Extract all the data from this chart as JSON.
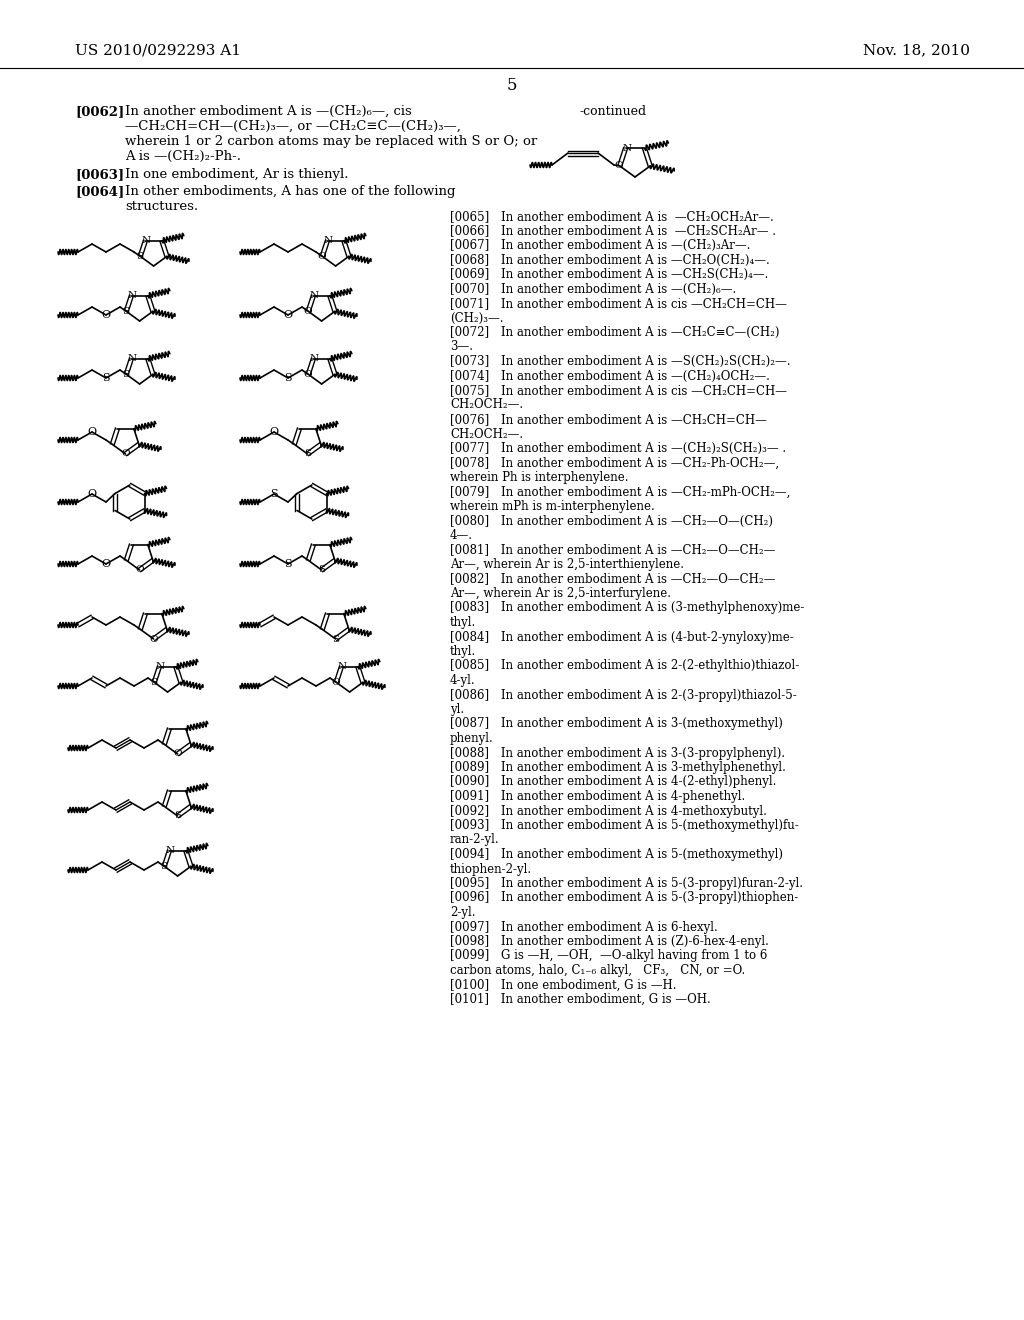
{
  "page_header_left": "US 2010/0292293 A1",
  "page_header_right": "Nov. 18, 2010",
  "page_number": "5",
  "bg_color": "#ffffff",
  "left_text": "[0062] In another embodiment A is —(CH₂)₆—, cis\n—CH₂CH=CH—(CH₂)₃—, or —CH₂C≡C—(CH₂)₃—,\nwherein 1 or 2 carbon atoms may be replaced with S or O; or\nA is —(CH₂)₂-Ph-.\n[0063] In one embodiment, Ar is thienyl.\n[0064] In other embodiments, A has one of the following\nstructures.",
  "continued_label": "-continued",
  "right_text_blocks": [
    {
      "tag": "[0065]",
      "indent": "   ",
      "text": "In another embodiment A is  —CH₂OCH₂Ar—."
    },
    {
      "tag": "[0066]",
      "indent": "   ",
      "text": "In another embodiment A is  —CH₂SCH₂Ar— ."
    },
    {
      "tag": "[0067]",
      "indent": "   ",
      "text": "In another embodiment A is —(CH₂)₃Ar—."
    },
    {
      "tag": "[0068]",
      "indent": "   ",
      "text": "In another embodiment A is —CH₂O(CH₂)₄—."
    },
    {
      "tag": "[0069]",
      "indent": "   ",
      "text": "In another embodiment A is —CH₂S(CH₂)₄—."
    },
    {
      "tag": "[0070]",
      "indent": "   ",
      "text": "In another embodiment A is —(CH₂)₆—."
    },
    {
      "tag": "[0071]",
      "indent": "   ",
      "text": "In another embodiment A is cis —CH₂CH=CH—\n(CH₂)₃—."
    },
    {
      "tag": "[0072]",
      "indent": "   ",
      "text": "In another embodiment A is —CH₂C≡C—(CH₂)\n3—."
    },
    {
      "tag": "[0073]",
      "indent": "   ",
      "text": "In another embodiment A is —S(CH₂)₂S(CH₂)₂—."
    },
    {
      "tag": "[0074]",
      "indent": "   ",
      "text": "In another embodiment A is —(CH₂)₄OCH₂—."
    },
    {
      "tag": "[0075]",
      "indent": "   ",
      "text": "In another embodiment A is cis —CH₂CH=CH—\nCH₂OCH₂—."
    },
    {
      "tag": "[0076]",
      "indent": "   ",
      "text": "In another embodiment A is —CH₂CH=CH—\nCH₂OCH₂—."
    },
    {
      "tag": "[0077]",
      "indent": "   ",
      "text": "In another embodiment A is —(CH₂)₂S(CH₂)₃— ."
    },
    {
      "tag": "[0078]",
      "indent": "   ",
      "text": "In another embodiment A is —CH₂-Ph-OCH₂—,\nwherein Ph is interphenylene."
    },
    {
      "tag": "[0079]",
      "indent": "   ",
      "text": "In another embodiment A is —CH₂-mPh-OCH₂—,\nwherein mPh is m-interphenylene."
    },
    {
      "tag": "[0080]",
      "indent": "   ",
      "text": "In another embodiment A is —CH₂—O—(CH₂)\n4—."
    },
    {
      "tag": "[0081]",
      "indent": "   ",
      "text": "In another embodiment A is —CH₂—O—CH₂—\nAr—, wherein Ar is 2,5-interthienylene."
    },
    {
      "tag": "[0082]",
      "indent": "   ",
      "text": "In another embodiment A is —CH₂—O—CH₂—\nAr—, wherein Ar is 2,5-interfurylene."
    },
    {
      "tag": "[0083]",
      "indent": "   ",
      "text": "In another embodiment A is (3-methylphenoxy)me-\nthyl."
    },
    {
      "tag": "[0084]",
      "indent": "   ",
      "text": "In another embodiment A is (4-but-2-ynyloxy)me-\nthyl."
    },
    {
      "tag": "[0085]",
      "indent": "   ",
      "text": "In another embodiment A is 2-(2-ethylthio)thiazol-\n4-yl."
    },
    {
      "tag": "[0086]",
      "indent": "   ",
      "text": "In another embodiment A is 2-(3-propyl)thiazol-5-\nyl."
    },
    {
      "tag": "[0087]",
      "indent": "   ",
      "text": "In another embodiment A is 3-(methoxymethyl)\nphenyl."
    },
    {
      "tag": "[0088]",
      "indent": "   ",
      "text": "In another embodiment A is 3-(3-propylphenyl)."
    },
    {
      "tag": "[0089]",
      "indent": "   ",
      "text": "In another embodiment A is 3-methylphenethyl."
    },
    {
      "tag": "[0090]",
      "indent": "   ",
      "text": "In another embodiment A is 4-(2-ethyl)phenyl."
    },
    {
      "tag": "[0091]",
      "indent": "   ",
      "text": "In another embodiment A is 4-phenethyl."
    },
    {
      "tag": "[0092]",
      "indent": "   ",
      "text": "In another embodiment A is 4-methoxybutyl."
    },
    {
      "tag": "[0093]",
      "indent": "   ",
      "text": "In another embodiment A is 5-(methoxymethyl)fu-\nran-2-yl."
    },
    {
      "tag": "[0094]",
      "indent": "   ",
      "text": "In another embodiment A is 5-(methoxymethyl)\nthiophen-2-yl."
    },
    {
      "tag": "[0095]",
      "indent": "   ",
      "text": "In another embodiment A is 5-(3-propyl)furan-2-yl."
    },
    {
      "tag": "[0096]",
      "indent": "   ",
      "text": "In another embodiment A is 5-(3-propyl)thiophen-\n2-yl."
    },
    {
      "tag": "[0097]",
      "indent": "   ",
      "text": "In another embodiment A is 6-hexyl."
    },
    {
      "tag": "[0098]",
      "indent": "   ",
      "text": "In another embodiment A is (Z)-6-hex-4-enyl."
    },
    {
      "tag": "[0099]",
      "indent": "   ",
      "text": "G is —H, —OH,  —O-alkyl having from 1 to 6\ncarbon atoms, halo, C₁₋₆ alkyl,   CF₃,   CN, or =O."
    },
    {
      "tag": "[0100]",
      "indent": "   ",
      "text": "In one embodiment, G is —H."
    },
    {
      "tag": "[0101]",
      "indent": "   ",
      "text": "In another embodiment, G is —OH."
    }
  ]
}
